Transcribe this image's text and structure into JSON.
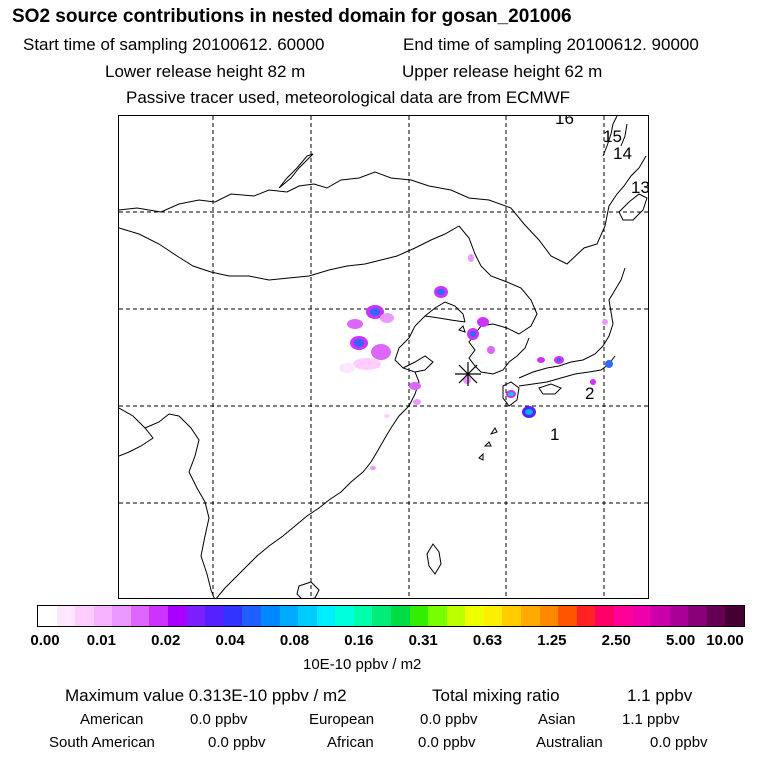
{
  "header": {
    "title": "SO2 source contributions in nested domain for gosan_201006",
    "start_label": "Start time of sampling 20100612. 60000",
    "end_label": "End time of sampling 20100612. 90000",
    "lower_height_label": "Lower release height   82 m",
    "upper_height_label": "Upper release height   62 m",
    "tracer_note": "Passive tracer used, meteorological data are from ECMWF"
  },
  "map": {
    "trajectory_labels": [
      "16",
      "15",
      "14",
      "13",
      "2",
      "1"
    ],
    "receptor_marker": "asterisk",
    "plume_colors": [
      "#ff66ff",
      "#cc33ff",
      "#3366ff",
      "#00ccff",
      "#00ff66"
    ]
  },
  "colorbar": {
    "swatches": [
      "#ffffff",
      "#ffe6ff",
      "#ffccff",
      "#f7b3ff",
      "#eb99ff",
      "#dd66ff",
      "#cc33ff",
      "#aa00ff",
      "#7a1fff",
      "#5522ff",
      "#3333ff",
      "#1f5fff",
      "#0088ff",
      "#00aaff",
      "#00ccff",
      "#00eeff",
      "#00ffdd",
      "#00ffaa",
      "#00ee77",
      "#00dd44",
      "#33ee00",
      "#77ff00",
      "#bbff00",
      "#eeff00",
      "#ffee00",
      "#ffcc00",
      "#ffaa00",
      "#ff8800",
      "#ff5500",
      "#ff2222",
      "#ff0066",
      "#ff0099",
      "#ee00aa",
      "#cc00aa",
      "#aa0099",
      "#880077",
      "#660055",
      "#440033"
    ],
    "ticks": [
      "0.00",
      "0.01",
      "0.02",
      "0.04",
      "0.08",
      "0.16",
      "0.31",
      "0.63",
      "1.25",
      "2.50",
      "5.00",
      "10.00"
    ],
    "unit": "10E-10 ppbv / m2"
  },
  "footer": {
    "max_label": "Maximum value  0.313E-10 ppbv / m2",
    "total_label": "Total mixing ratio",
    "total_value": "1.1 ppbv",
    "regions": [
      {
        "name": "American",
        "value": "0.0 ppbv"
      },
      {
        "name": "European",
        "value": "0.0 ppbv"
      },
      {
        "name": "Asian",
        "value": "1.1 ppbv"
      },
      {
        "name": "South American",
        "value": "0.0 ppbv"
      },
      {
        "name": "African",
        "value": "0.0 ppbv"
      },
      {
        "name": "Australian",
        "value": "0.0 ppbv"
      }
    ]
  }
}
